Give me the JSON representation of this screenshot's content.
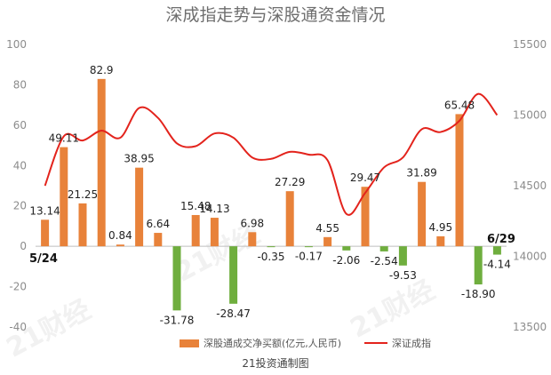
{
  "chart_data": {
    "type": "bar",
    "title": "深成指走势与深股通资金情况",
    "source": "21投资通制图",
    "watermark": "21财经",
    "colors": {
      "positive": "#E8823A",
      "negative": "#6FAE3E",
      "line": "#E3231C"
    },
    "start_label": "5/24",
    "end_label": "6/29",
    "y_left": {
      "min": -40,
      "max": 100,
      "ticks": [
        "100",
        "80",
        "60",
        "40",
        "20",
        "0",
        "-20",
        "-40"
      ]
    },
    "y_right": {
      "min": 13500,
      "max": 15500,
      "ticks": [
        "15500",
        "15000",
        "14500",
        "14000",
        "13500"
      ]
    },
    "legend": {
      "bar_label": "深股通成交净买额(亿元,人民币)",
      "line_label": "深证成指"
    },
    "series": [
      {
        "name": "深股通成交净买额(亿元,人民币)",
        "axis": "left",
        "values": [
          13.14,
          49.11,
          21.25,
          82.9,
          0.84,
          38.95,
          6.64,
          -31.78,
          15.48,
          14.13,
          -28.47,
          6.98,
          -0.35,
          27.29,
          -0.17,
          4.55,
          -2.06,
          29.47,
          -2.54,
          -9.53,
          31.89,
          4.95,
          65.48,
          -18.9,
          -4.14
        ],
        "labels": [
          "13.14",
          "49.11",
          "21.25",
          "82.9",
          "0.84",
          "38.95",
          "6.64",
          "-31.78",
          "15.48",
          "14.13",
          "-28.47",
          "6.98",
          "-0.35",
          "27.29",
          "-0.17",
          "4.55",
          "-2.06",
          "29.47",
          "-2.54",
          "-9.53",
          "31.89",
          "4.95",
          "65.48",
          "-18.90",
          "-4.14"
        ]
      },
      {
        "name": "深证成指",
        "axis": "right",
        "values": [
          14500,
          14850,
          14820,
          14890,
          14840,
          15050,
          14980,
          14800,
          14780,
          14870,
          14840,
          14700,
          14690,
          14740,
          14720,
          14680,
          14300,
          14450,
          14630,
          14700,
          14900,
          14880,
          14960,
          15150,
          15000
        ]
      }
    ]
  }
}
